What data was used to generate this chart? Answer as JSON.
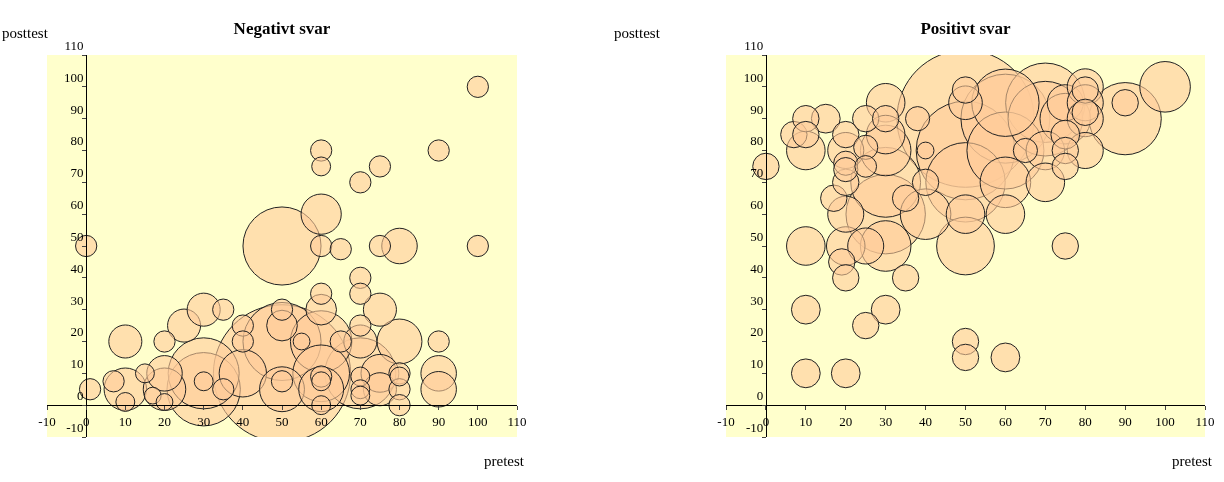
{
  "chart_data": [
    {
      "type": "bubble",
      "title": "Negativt svar",
      "xlabel": "pretest",
      "ylabel": "posttest",
      "color": "#ffcc99",
      "marker": "circle",
      "grid": false,
      "xlim": [
        -10,
        110
      ],
      "xticks": [
        -10,
        0,
        10,
        20,
        30,
        40,
        50,
        60,
        70,
        80,
        90,
        100,
        110
      ],
      "ylim": [
        -10,
        110
      ],
      "yticks": [
        -10,
        0,
        10,
        20,
        30,
        40,
        50,
        60,
        70,
        80,
        90,
        100,
        110
      ],
      "x": [
        0,
        1,
        7,
        10,
        10,
        10,
        15,
        20,
        20,
        20,
        17,
        20,
        25,
        30,
        35,
        30,
        30,
        30,
        35,
        40,
        40,
        40,
        50,
        50,
        50,
        50,
        50,
        50,
        50,
        55,
        60,
        60,
        60,
        60,
        65,
        60,
        60,
        60,
        60,
        60,
        60,
        60,
        60,
        65,
        70,
        70,
        70,
        70,
        70,
        70,
        70,
        70,
        70,
        75,
        75,
        75,
        75,
        75,
        80,
        80,
        80,
        80,
        80,
        80,
        90,
        90,
        90,
        90,
        100,
        100
      ],
      "values": [
        50,
        5,
        7.5,
        5,
        20,
        1,
        10,
        20,
        10,
        5,
        3,
        1,
        25,
        30,
        30,
        10,
        5,
        7.5,
        5,
        25,
        20,
        10,
        50,
        10,
        20,
        25,
        30,
        5,
        7.5,
        20,
        80,
        75,
        60,
        50,
        49,
        35,
        30,
        20,
        10,
        9,
        5,
        0,
        7.5,
        20,
        70,
        40,
        35,
        25,
        20,
        10,
        9,
        5,
        3,
        75,
        50,
        30,
        10,
        5,
        50,
        20,
        10,
        5,
        0,
        9,
        80,
        20,
        10,
        5,
        100,
        50
      ],
      "sizes": [
        0.024,
        0.024,
        0.024,
        0.096,
        0.058,
        0.019,
        0.019,
        0.024,
        0.067,
        0.096,
        0.015,
        0.015,
        0.058,
        0.058,
        0.024,
        0.268,
        0.286,
        0.019,
        0.024,
        0.024,
        0.024,
        0.119,
        0.324,
        1,
        0.324,
        0.05,
        0.024,
        0.107,
        0.024,
        0.015,
        0.024,
        0.019,
        0.086,
        0.024,
        0.024,
        0.024,
        0.05,
        0.201,
        0.171,
        0.024,
        0.107,
        0.019,
        0.019,
        0.024,
        0.024,
        0.024,
        0.024,
        0.024,
        0.058,
        0.268,
        0.019,
        0.019,
        0.019,
        0.024,
        0.024,
        0.058,
        0.076,
        0.058,
        0.067,
        0.107,
        0.024,
        0.024,
        0.024,
        0.019,
        0.024,
        0.024,
        0.067,
        0.067,
        0.024,
        0.024
      ]
    },
    {
      "type": "bubble",
      "title": "Positivt svar",
      "xlabel": "pretest",
      "ylabel": "posttest",
      "color": "#ffcc99",
      "marker": "circle",
      "grid": false,
      "xlim": [
        -10,
        110
      ],
      "xticks": [
        -10,
        0,
        10,
        20,
        30,
        40,
        50,
        60,
        70,
        80,
        90,
        100,
        110
      ],
      "ylim": [
        -10,
        110
      ],
      "yticks": [
        -10,
        0,
        10,
        20,
        30,
        40,
        50,
        60,
        70,
        80,
        90,
        100,
        110
      ],
      "x": [
        0,
        7,
        10,
        10,
        10,
        10,
        10,
        10,
        15,
        17,
        20,
        20,
        20,
        20,
        20,
        20,
        20,
        19,
        20,
        20,
        25,
        25,
        25,
        25,
        25,
        30,
        30,
        30,
        30,
        30,
        30,
        30,
        30,
        35,
        35,
        38,
        40,
        40,
        40,
        50,
        50,
        50,
        50,
        50,
        50,
        50,
        50,
        50,
        60,
        60,
        60,
        60,
        60,
        60,
        65,
        70,
        70,
        70,
        70,
        75,
        75,
        75,
        75,
        75,
        75,
        80,
        80,
        80,
        80,
        80,
        80,
        90,
        90,
        100
      ],
      "values": [
        75,
        85,
        90,
        85,
        80,
        50,
        30,
        10,
        90,
        65,
        85,
        80,
        76,
        74,
        70,
        60,
        50,
        45,
        40,
        10,
        90,
        81,
        75,
        50,
        25,
        95,
        90,
        85,
        80,
        70,
        60,
        50,
        30,
        65,
        40,
        90,
        80,
        70,
        60,
        90,
        80,
        70,
        60,
        50,
        95,
        99,
        20,
        15,
        95,
        90,
        80,
        70,
        60,
        15,
        80,
        95,
        90,
        80,
        70,
        95,
        90,
        85,
        80,
        75,
        50,
        100,
        99,
        95,
        92,
        90,
        80,
        90,
        95,
        100
      ],
      "sizes": [
        0.037,
        0.037,
        0.037,
        0.037,
        0.079,
        0.079,
        0.044,
        0.044,
        0.044,
        0.037,
        0.037,
        0.069,
        0.031,
        0.031,
        0.037,
        0.069,
        0.079,
        0.037,
        0.037,
        0.044,
        0.037,
        0.031,
        0.025,
        0.069,
        0.037,
        0.079,
        0.037,
        0.079,
        0.136,
        0.259,
        0.335,
        0.136,
        0.044,
        0.037,
        0.037,
        0.031,
        0.015,
        0.037,
        0.136,
        1,
        0.517,
        0.335,
        0.079,
        0.177,
        0.06,
        0.037,
        0.037,
        0.037,
        0.241,
        0.421,
        0.315,
        0.136,
        0.079,
        0.044,
        0.031,
        0.335,
        0.296,
        0.079,
        0.079,
        0.069,
        0.136,
        0.044,
        0.037,
        0.037,
        0.037,
        0.069,
        0.037,
        0.069,
        0.037,
        0.069,
        0.069,
        0.277,
        0.037,
        0.136
      ]
    }
  ]
}
